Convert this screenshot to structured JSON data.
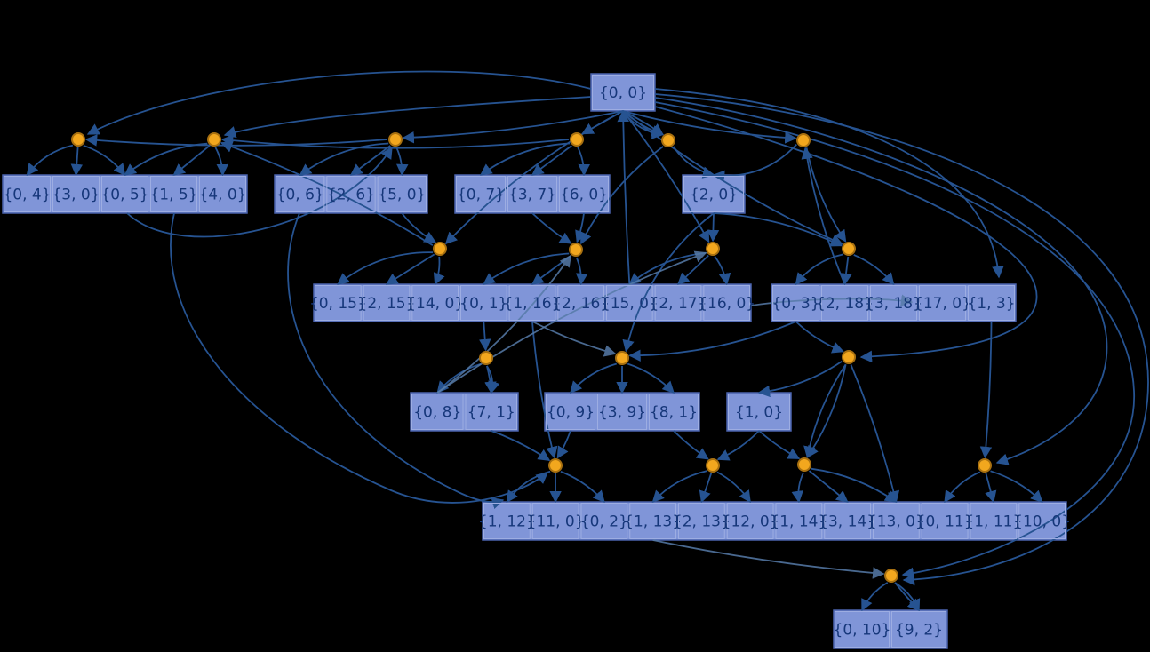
{
  "title": "set-partition graph",
  "colors": {
    "background": "#000000",
    "box_fill": "#8095d8",
    "box_border": "#4a63ad",
    "cell_border": "#9dade2",
    "text": "#16377a",
    "edge": "#265391",
    "edge_light": "#567ba8",
    "point_fill": "#f2a71e",
    "point_stroke": "#a87010"
  },
  "nodes": [
    {
      "id": "b00",
      "type": "record",
      "cells": [
        "{0, 0}"
      ]
    },
    {
      "id": "rA",
      "type": "record",
      "cells": [
        "{0, 4}",
        "{3, 0}",
        "{0, 5}",
        "{1, 5}",
        "{4, 0}"
      ]
    },
    {
      "id": "rB",
      "type": "record",
      "cells": [
        "{0, 6}",
        "{2, 6}",
        "{5, 0}"
      ]
    },
    {
      "id": "rC",
      "type": "record",
      "cells": [
        "{0, 7}",
        "{3, 7}",
        "{6, 0}"
      ]
    },
    {
      "id": "b20",
      "type": "record",
      "cells": [
        "{2, 0}"
      ]
    },
    {
      "id": "rD",
      "type": "record",
      "cells": [
        "{0, 15}",
        "{2, 15}",
        "{14, 0}",
        "{0, 1}",
        "{1, 16}",
        "{2, 16}",
        "{15, 0}",
        "{2, 17}",
        "{16, 0}"
      ]
    },
    {
      "id": "rE",
      "type": "record",
      "cells": [
        "{0, 3}",
        "{2, 18}",
        "{3, 18}",
        "{17, 0}",
        "{1, 3}"
      ]
    },
    {
      "id": "rF",
      "type": "record",
      "cells": [
        "{0, 8}",
        "{7, 1}"
      ]
    },
    {
      "id": "rG",
      "type": "record",
      "cells": [
        "{0, 9}",
        "{3, 9}",
        "{8, 1}"
      ]
    },
    {
      "id": "b10",
      "type": "record",
      "cells": [
        "{1, 0}"
      ]
    },
    {
      "id": "rH",
      "type": "record",
      "cells": [
        "{1, 12}",
        "{11, 0}",
        "{0, 2}",
        "{1, 13}",
        "{2, 13}",
        "{12, 0}",
        "{1, 14}",
        "{3, 14}",
        "{13, 0}",
        "{0, 11}",
        "{1, 11}",
        "{10, 0}"
      ]
    },
    {
      "id": "rI",
      "type": "record",
      "cells": [
        "{0, 10}",
        "{9, 2}"
      ]
    },
    {
      "id": "d1",
      "type": "point"
    },
    {
      "id": "d2",
      "type": "point"
    },
    {
      "id": "d3",
      "type": "point"
    },
    {
      "id": "d4",
      "type": "point"
    },
    {
      "id": "d5",
      "type": "point"
    },
    {
      "id": "d6",
      "type": "point"
    },
    {
      "id": "d7",
      "type": "point"
    },
    {
      "id": "d8",
      "type": "point"
    },
    {
      "id": "d9",
      "type": "point"
    },
    {
      "id": "d10",
      "type": "point"
    },
    {
      "id": "d11",
      "type": "point"
    },
    {
      "id": "d12",
      "type": "point"
    },
    {
      "id": "d13",
      "type": "point"
    },
    {
      "id": "d14",
      "type": "point"
    },
    {
      "id": "d15",
      "type": "point"
    },
    {
      "id": "d16",
      "type": "point"
    },
    {
      "id": "d17",
      "type": "point"
    },
    {
      "id": "d18",
      "type": "point"
    }
  ],
  "edges": [
    {
      "from": "d1",
      "to": "rA.0"
    },
    {
      "from": "d1",
      "to": "rA.1"
    },
    {
      "from": "d1",
      "to": "rA.2"
    },
    {
      "from": "d2",
      "to": "rA.2"
    },
    {
      "from": "d2",
      "to": "rA.3"
    },
    {
      "from": "d2",
      "to": "rA.4"
    },
    {
      "from": "d3",
      "to": "rB.0"
    },
    {
      "from": "d3",
      "to": "rB.1"
    },
    {
      "from": "d3",
      "to": "rB.2"
    },
    {
      "from": "d4",
      "to": "rC.0"
    },
    {
      "from": "d4",
      "to": "rC.1"
    },
    {
      "from": "d4",
      "to": "rC.2"
    },
    {
      "from": "d5",
      "to": "b20.0"
    },
    {
      "from": "d6",
      "to": "b20.0"
    },
    {
      "from": "d7",
      "to": "rD.0"
    },
    {
      "from": "d7",
      "to": "rD.1"
    },
    {
      "from": "d7",
      "to": "rD.2"
    },
    {
      "from": "d8",
      "to": "rD.3"
    },
    {
      "from": "d8",
      "to": "rD.4"
    },
    {
      "from": "d8",
      "to": "rD.5"
    },
    {
      "from": "d9",
      "to": "rD.6"
    },
    {
      "from": "d9",
      "to": "rD.7"
    },
    {
      "from": "d9",
      "to": "rD.8"
    },
    {
      "from": "d10",
      "to": "rE.0"
    },
    {
      "from": "d10",
      "to": "rE.1"
    },
    {
      "from": "d10",
      "to": "rE.2"
    },
    {
      "from": "d11",
      "to": "rF.0"
    },
    {
      "from": "d11",
      "to": "rF.1"
    },
    {
      "from": "d11",
      "to": "rF.1"
    },
    {
      "from": "d12",
      "to": "rG.0"
    },
    {
      "from": "d12",
      "to": "rG.1"
    },
    {
      "from": "d12",
      "to": "rG.2"
    },
    {
      "from": "d14",
      "to": "rH.0"
    },
    {
      "from": "d14",
      "to": "rH.1"
    },
    {
      "from": "d14",
      "to": "rH.2"
    },
    {
      "from": "d15",
      "to": "rH.3"
    },
    {
      "from": "d15",
      "to": "rH.4"
    },
    {
      "from": "d15",
      "to": "rH.5"
    },
    {
      "from": "d16",
      "to": "rH.6"
    },
    {
      "from": "d16",
      "to": "rH.7"
    },
    {
      "from": "d16",
      "to": "rH.8"
    },
    {
      "from": "d17",
      "to": "rH.9"
    },
    {
      "from": "d17",
      "to": "rH.10"
    },
    {
      "from": "d17",
      "to": "rH.11"
    },
    {
      "from": "d18",
      "to": "rI.0"
    },
    {
      "from": "d18",
      "to": "rI.1"
    },
    {
      "from": "d18",
      "to": "rI.1"
    },
    {
      "from": "b00",
      "to": "d3"
    },
    {
      "from": "b00",
      "to": "d4"
    },
    {
      "from": "b00",
      "to": "d5"
    },
    {
      "from": "b00",
      "to": "d5"
    },
    {
      "from": "b00",
      "to": "d5"
    },
    {
      "from": "b00",
      "to": "d6"
    },
    {
      "from": "b00",
      "to": "d7"
    },
    {
      "from": "b00",
      "to": "d9"
    },
    {
      "from": "b00",
      "to": "d10"
    },
    {
      "from": "b00",
      "to": "d17"
    },
    {
      "from": "b00",
      "to": "d18"
    },
    {
      "from": "b00",
      "to": "d18"
    },
    {
      "from": "b00",
      "to": "d13"
    },
    {
      "from": "b00",
      "to": "rE.4"
    },
    {
      "from": "b00",
      "to": "d1"
    },
    {
      "from": "b00",
      "to": "d2"
    },
    {
      "from": "rB.0",
      "to": "rH.0"
    },
    {
      "from": "rA.3",
      "to": "d14"
    },
    {
      "from": "rA.2",
      "to": "d3"
    },
    {
      "from": "d3",
      "to": "d1"
    },
    {
      "from": "d4",
      "to": "d2"
    },
    {
      "from": "rB.2",
      "to": "d7"
    },
    {
      "from": "rC.1",
      "to": "d8"
    },
    {
      "from": "rC.2",
      "to": "d8"
    },
    {
      "from": "d5",
      "to": "d8"
    },
    {
      "from": "b20.0",
      "to": "d9"
    },
    {
      "from": "b20.0",
      "to": "d10"
    },
    {
      "from": "d6",
      "to": "d10"
    },
    {
      "from": "b20.0",
      "to": "d12"
    },
    {
      "from": "rE.0",
      "to": "d12"
    },
    {
      "from": "rD.3",
      "to": "d11"
    },
    {
      "from": "rD.4",
      "to": "d14"
    },
    {
      "from": "rE.0",
      "to": "d13"
    },
    {
      "from": "d13",
      "to": "d16"
    },
    {
      "from": "d13",
      "to": "d16"
    },
    {
      "from": "d13",
      "to": "rH.8"
    },
    {
      "from": "d13",
      "to": "b10.0"
    },
    {
      "from": "rG.2",
      "to": "d15"
    },
    {
      "from": "rG.0",
      "to": "d14"
    },
    {
      "from": "rF.1",
      "to": "d14"
    },
    {
      "from": "b10.0",
      "to": "d15"
    },
    {
      "from": "b10.0",
      "to": "d16"
    },
    {
      "from": "rE.4",
      "to": "d17"
    },
    {
      "from": "rD.6",
      "to": "b00"
    },
    {
      "from": "rE.1",
      "to": "d6"
    },
    {
      "from": "rH.3",
      "to": "d18"
    },
    {
      "from": "rD.8",
      "to": "rE.3"
    },
    {
      "from": "rF.0",
      "to": "d8"
    },
    {
      "from": "d7",
      "to": "d2"
    },
    {
      "from": "rF.0",
      "to": "d9"
    },
    {
      "from": "rD.4",
      "to": "d12"
    }
  ]
}
